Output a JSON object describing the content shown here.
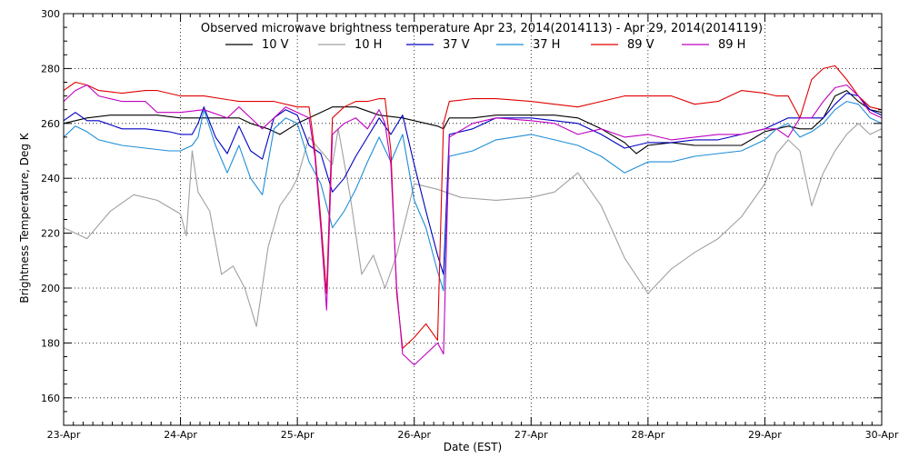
{
  "chart_data": {
    "type": "line",
    "title": "Observed microwave brightness temperature Apr 23, 2014(2014113) - Apr 29, 2014(2014119)",
    "xlabel": "Date (EST)",
    "ylabel": "Brightness Temperature, Deg K",
    "x_ticks": [
      "23-Apr",
      "24-Apr",
      "25-Apr",
      "26-Apr",
      "27-Apr",
      "28-Apr",
      "29-Apr",
      "30-Apr"
    ],
    "xlim": [
      0,
      7
    ],
    "ylim": [
      150,
      300
    ],
    "y_ticks": [
      160,
      180,
      200,
      220,
      240,
      260,
      280,
      300
    ],
    "grid": true,
    "legend_position": "top",
    "series": [
      {
        "name": "10 V",
        "color": "#000000",
        "x": [
          0,
          0.2,
          0.4,
          0.6,
          0.8,
          1.0,
          1.2,
          1.35,
          1.5,
          1.6,
          1.75,
          1.85,
          2.0,
          2.2,
          2.3,
          2.5,
          2.7,
          2.9,
          3.0,
          3.1,
          3.2,
          3.25,
          3.3,
          3.5,
          3.7,
          4.0,
          4.2,
          4.4,
          4.6,
          4.8,
          4.9,
          5.0,
          5.2,
          5.4,
          5.6,
          5.8,
          6.0,
          6.1,
          6.2,
          6.3,
          6.4,
          6.5,
          6.6,
          6.7,
          6.8,
          6.9,
          7.0
        ],
        "y": [
          260,
          262,
          263,
          263,
          263,
          262,
          262,
          262,
          262,
          260,
          258,
          256,
          260,
          264,
          266,
          266,
          263,
          262,
          261,
          260,
          259,
          258,
          262,
          262,
          263,
          263,
          263,
          262,
          258,
          253,
          249,
          252,
          253,
          252,
          252,
          252,
          257,
          258,
          259,
          258,
          258,
          262,
          270,
          272,
          268,
          265,
          264
        ]
      },
      {
        "name": "10 H",
        "color": "#a0a0a0",
        "x": [
          0,
          0.1,
          0.2,
          0.4,
          0.6,
          0.8,
          1.0,
          1.05,
          1.1,
          1.15,
          1.25,
          1.35,
          1.45,
          1.55,
          1.65,
          1.75,
          1.85,
          1.95,
          2.0,
          2.1,
          2.2,
          2.3,
          2.35,
          2.45,
          2.55,
          2.65,
          2.75,
          2.85,
          3.0,
          3.2,
          3.4,
          3.7,
          4.0,
          4.2,
          4.4,
          4.6,
          4.8,
          5.0,
          5.2,
          5.4,
          5.6,
          5.8,
          6.0,
          6.1,
          6.2,
          6.3,
          6.4,
          6.5,
          6.6,
          6.7,
          6.8,
          6.9,
          7.0
        ],
        "y": [
          222,
          220,
          218,
          228,
          234,
          232,
          227,
          219,
          250,
          235,
          228,
          205,
          208,
          200,
          186,
          215,
          230,
          236,
          240,
          255,
          250,
          245,
          258,
          234,
          205,
          212,
          200,
          212,
          238,
          236,
          233,
          232,
          233,
          235,
          242,
          230,
          211,
          198,
          207,
          213,
          218,
          226,
          238,
          249,
          254,
          250,
          230,
          242,
          250,
          256,
          260,
          256,
          258
        ]
      },
      {
        "name": "37 V",
        "color": "#0000c0",
        "x": [
          0,
          0.1,
          0.2,
          0.3,
          0.5,
          0.7,
          0.9,
          1.0,
          1.1,
          1.15,
          1.2,
          1.3,
          1.4,
          1.5,
          1.6,
          1.7,
          1.8,
          1.9,
          2.0,
          2.1,
          2.2,
          2.3,
          2.4,
          2.5,
          2.6,
          2.7,
          2.8,
          2.9,
          3.0,
          3.1,
          3.2,
          3.25,
          3.3,
          3.5,
          3.7,
          4.0,
          4.2,
          4.4,
          4.6,
          4.8,
          5.0,
          5.2,
          5.4,
          5.6,
          5.8,
          6.0,
          6.1,
          6.2,
          6.3,
          6.4,
          6.5,
          6.6,
          6.7,
          6.8,
          6.9,
          7.0
        ],
        "y": [
          261,
          264,
          261,
          261,
          258,
          258,
          257,
          256,
          256,
          260,
          266,
          255,
          249,
          259,
          250,
          247,
          262,
          265,
          263,
          252,
          249,
          235,
          240,
          248,
          255,
          262,
          256,
          263,
          245,
          228,
          212,
          205,
          256,
          258,
          262,
          262,
          261,
          260,
          256,
          251,
          253,
          253,
          254,
          254,
          256,
          258,
          260,
          262,
          262,
          262,
          262,
          267,
          271,
          270,
          265,
          263
        ]
      },
      {
        "name": "37 H",
        "color": "#1e8ed6",
        "x": [
          0,
          0.1,
          0.2,
          0.3,
          0.5,
          0.7,
          0.9,
          1.0,
          1.1,
          1.15,
          1.2,
          1.3,
          1.4,
          1.5,
          1.6,
          1.7,
          1.8,
          1.9,
          2.0,
          2.1,
          2.2,
          2.3,
          2.4,
          2.5,
          2.6,
          2.7,
          2.8,
          2.9,
          3.0,
          3.1,
          3.2,
          3.25,
          3.3,
          3.5,
          3.7,
          4.0,
          4.2,
          4.4,
          4.6,
          4.8,
          5.0,
          5.2,
          5.4,
          5.6,
          5.8,
          6.0,
          6.1,
          6.2,
          6.3,
          6.4,
          6.5,
          6.6,
          6.7,
          6.8,
          6.9,
          7.0
        ],
        "y": [
          255,
          259,
          257,
          254,
          252,
          251,
          250,
          250,
          252,
          255,
          265,
          252,
          242,
          252,
          240,
          234,
          258,
          262,
          260,
          246,
          238,
          222,
          228,
          236,
          246,
          255,
          246,
          256,
          232,
          222,
          206,
          199,
          248,
          250,
          254,
          256,
          254,
          252,
          248,
          242,
          246,
          246,
          248,
          249,
          250,
          254,
          258,
          260,
          255,
          257,
          260,
          265,
          268,
          267,
          262,
          260
        ]
      },
      {
        "name": "89 V",
        "color": "#e00000",
        "x": [
          0,
          0.1,
          0.2,
          0.3,
          0.5,
          0.7,
          0.8,
          1.0,
          1.2,
          1.5,
          1.8,
          2.0,
          2.1,
          2.15,
          2.2,
          2.25,
          2.3,
          2.4,
          2.5,
          2.6,
          2.7,
          2.75,
          2.8,
          2.85,
          2.9,
          3.0,
          3.1,
          3.2,
          3.25,
          3.3,
          3.5,
          3.7,
          4.0,
          4.2,
          4.4,
          4.6,
          4.8,
          5.0,
          5.2,
          5.4,
          5.6,
          5.8,
          6.0,
          6.1,
          6.2,
          6.3,
          6.4,
          6.5,
          6.6,
          6.7,
          6.8,
          6.9,
          7.0
        ],
        "y": [
          272,
          275,
          274,
          272,
          271,
          272,
          272,
          270,
          270,
          268,
          268,
          266,
          266,
          250,
          225,
          198,
          262,
          266,
          268,
          268,
          269,
          269,
          250,
          198,
          178,
          182,
          187,
          181,
          260,
          268,
          269,
          269,
          268,
          267,
          266,
          268,
          270,
          270,
          270,
          267,
          268,
          272,
          271,
          270,
          270,
          262,
          276,
          280,
          281,
          276,
          270,
          266,
          265
        ]
      },
      {
        "name": "89 H",
        "color": "#c000c0",
        "x": [
          0,
          0.1,
          0.2,
          0.3,
          0.5,
          0.7,
          0.8,
          1.0,
          1.2,
          1.4,
          1.5,
          1.7,
          1.8,
          1.9,
          2.0,
          2.1,
          2.15,
          2.2,
          2.25,
          2.3,
          2.4,
          2.5,
          2.6,
          2.7,
          2.75,
          2.8,
          2.85,
          2.9,
          3.0,
          3.1,
          3.2,
          3.25,
          3.3,
          3.5,
          3.7,
          4.0,
          4.2,
          4.4,
          4.6,
          4.8,
          5.0,
          5.2,
          5.4,
          5.6,
          5.8,
          6.0,
          6.1,
          6.2,
          6.3,
          6.4,
          6.5,
          6.6,
          6.7,
          6.8,
          6.9,
          7.0
        ],
        "y": [
          268,
          272,
          274,
          270,
          268,
          268,
          264,
          264,
          265,
          262,
          266,
          258,
          262,
          266,
          264,
          262,
          248,
          222,
          192,
          256,
          260,
          262,
          258,
          265,
          260,
          245,
          200,
          176,
          172,
          176,
          180,
          176,
          255,
          260,
          262,
          261,
          260,
          256,
          258,
          255,
          256,
          254,
          255,
          256,
          256,
          258,
          258,
          255,
          262,
          262,
          268,
          273,
          274,
          270,
          264,
          262
        ]
      }
    ]
  }
}
